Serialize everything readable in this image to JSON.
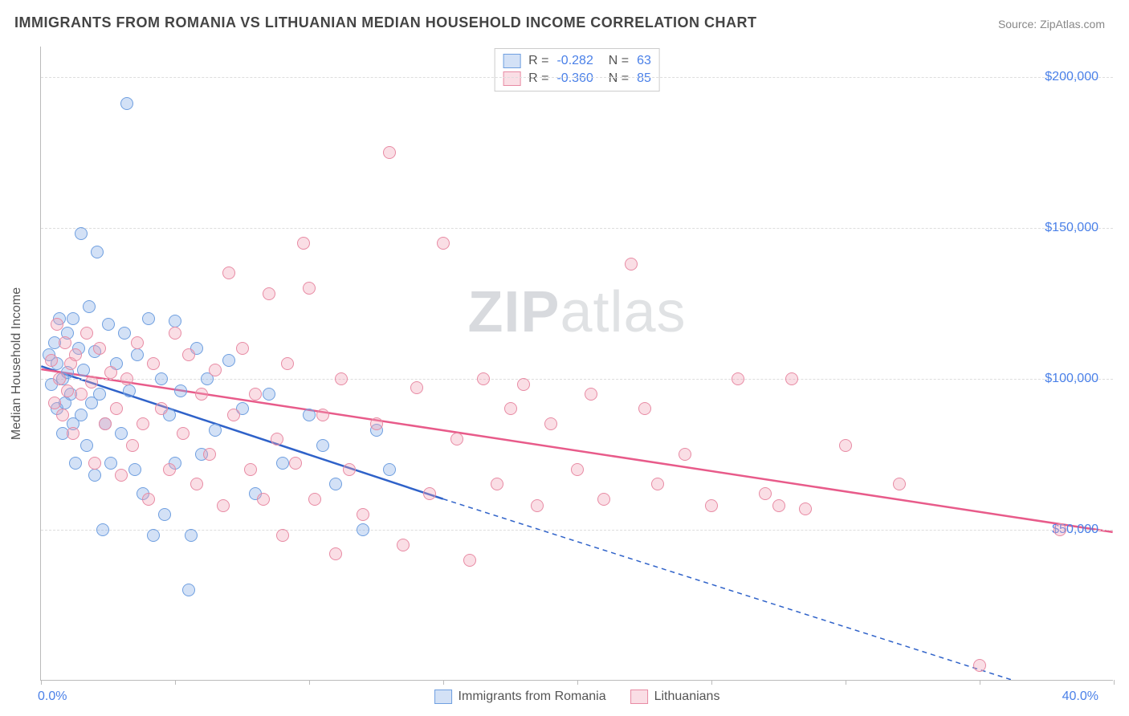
{
  "title": "IMMIGRANTS FROM ROMANIA VS LITHUANIAN MEDIAN HOUSEHOLD INCOME CORRELATION CHART",
  "source_prefix": "Source: ",
  "source_name": "ZipAtlas.com",
  "watermark_bold": "ZIP",
  "watermark_rest": "atlas",
  "chart": {
    "type": "scatter",
    "xlim": [
      0,
      40
    ],
    "ylim": [
      0,
      210000
    ],
    "xtick_positions": [
      0,
      5,
      10,
      15,
      20,
      25,
      30,
      35,
      40
    ],
    "xtick_labels_shown": {
      "0": "0.0%",
      "40": "40.0%"
    },
    "yticks": [
      {
        "v": 50000,
        "label": "$50,000"
      },
      {
        "v": 100000,
        "label": "$100,000"
      },
      {
        "v": 150000,
        "label": "$150,000"
      },
      {
        "v": 200000,
        "label": "$200,000"
      }
    ],
    "y_axis_title": "Median Household Income",
    "grid_color": "#dddddd",
    "axis_color": "#bbbbbb",
    "background_color": "#ffffff",
    "label_color": "#4a80e8",
    "text_color": "#555555",
    "title_fontsize": 18,
    "label_fontsize": 16,
    "dot_radius": 8,
    "series": [
      {
        "name": "Immigrants from Romania",
        "key": "romania",
        "R": "-0.282",
        "N": "63",
        "fill": "rgba(130,170,230,0.35)",
        "stroke": "#6f9fe0",
        "line_color": "#2f62c9",
        "trend": {
          "x1": 0,
          "y1": 104000,
          "x2_solid": 15,
          "y2_solid": 60000,
          "x2_dash": 38,
          "y2_dash": -5000
        },
        "points": [
          [
            0.3,
            108000
          ],
          [
            0.4,
            98000
          ],
          [
            0.5,
            112000
          ],
          [
            0.6,
            105000
          ],
          [
            0.6,
            90000
          ],
          [
            0.7,
            120000
          ],
          [
            0.8,
            100000
          ],
          [
            0.8,
            82000
          ],
          [
            0.9,
            92000
          ],
          [
            1.0,
            115000
          ],
          [
            1.0,
            102000
          ],
          [
            1.1,
            95000
          ],
          [
            1.2,
            85000
          ],
          [
            1.2,
            120000
          ],
          [
            1.3,
            72000
          ],
          [
            1.4,
            110000
          ],
          [
            1.5,
            88000
          ],
          [
            1.5,
            148000
          ],
          [
            1.6,
            103000
          ],
          [
            1.7,
            78000
          ],
          [
            1.8,
            124000
          ],
          [
            1.9,
            92000
          ],
          [
            2.0,
            68000
          ],
          [
            2.0,
            109000
          ],
          [
            2.1,
            142000
          ],
          [
            2.2,
            95000
          ],
          [
            2.3,
            50000
          ],
          [
            2.4,
            85000
          ],
          [
            2.5,
            118000
          ],
          [
            2.6,
            72000
          ],
          [
            2.8,
            105000
          ],
          [
            3.0,
            82000
          ],
          [
            3.1,
            115000
          ],
          [
            3.2,
            191000
          ],
          [
            3.3,
            96000
          ],
          [
            3.5,
            70000
          ],
          [
            3.6,
            108000
          ],
          [
            3.8,
            62000
          ],
          [
            4.0,
            120000
          ],
          [
            4.2,
            48000
          ],
          [
            4.5,
            100000
          ],
          [
            4.6,
            55000
          ],
          [
            4.8,
            88000
          ],
          [
            5.0,
            119000
          ],
          [
            5.0,
            72000
          ],
          [
            5.2,
            96000
          ],
          [
            5.5,
            30000
          ],
          [
            5.6,
            48000
          ],
          [
            5.8,
            110000
          ],
          [
            6.0,
            75000
          ],
          [
            6.2,
            100000
          ],
          [
            6.5,
            83000
          ],
          [
            7.0,
            106000
          ],
          [
            7.5,
            90000
          ],
          [
            8.0,
            62000
          ],
          [
            8.5,
            95000
          ],
          [
            9.0,
            72000
          ],
          [
            10.0,
            88000
          ],
          [
            10.5,
            78000
          ],
          [
            11.0,
            65000
          ],
          [
            12.0,
            50000
          ],
          [
            12.5,
            83000
          ],
          [
            13.0,
            70000
          ]
        ]
      },
      {
        "name": "Lithuanians",
        "key": "lithuanians",
        "R": "-0.360",
        "N": "85",
        "fill": "rgba(240,160,180,0.35)",
        "stroke": "#e88ba4",
        "line_color": "#e85b8a",
        "trend": {
          "x1": 0,
          "y1": 103000,
          "x2_solid": 40,
          "y2_solid": 49000,
          "x2_dash": 40,
          "y2_dash": 49000
        },
        "points": [
          [
            0.4,
            106000
          ],
          [
            0.5,
            92000
          ],
          [
            0.6,
            118000
          ],
          [
            0.7,
            100000
          ],
          [
            0.8,
            88000
          ],
          [
            0.9,
            112000
          ],
          [
            1.0,
            96000
          ],
          [
            1.1,
            105000
          ],
          [
            1.2,
            82000
          ],
          [
            1.3,
            108000
          ],
          [
            1.5,
            95000
          ],
          [
            1.7,
            115000
          ],
          [
            1.9,
            99000
          ],
          [
            2.0,
            72000
          ],
          [
            2.2,
            110000
          ],
          [
            2.4,
            85000
          ],
          [
            2.6,
            102000
          ],
          [
            2.8,
            90000
          ],
          [
            3.0,
            68000
          ],
          [
            3.2,
            100000
          ],
          [
            3.4,
            78000
          ],
          [
            3.6,
            112000
          ],
          [
            3.8,
            85000
          ],
          [
            4.0,
            60000
          ],
          [
            4.2,
            105000
          ],
          [
            4.5,
            90000
          ],
          [
            4.8,
            70000
          ],
          [
            5.0,
            115000
          ],
          [
            5.3,
            82000
          ],
          [
            5.5,
            108000
          ],
          [
            5.8,
            65000
          ],
          [
            6.0,
            95000
          ],
          [
            6.3,
            75000
          ],
          [
            6.5,
            103000
          ],
          [
            6.8,
            58000
          ],
          [
            7.0,
            135000
          ],
          [
            7.2,
            88000
          ],
          [
            7.5,
            110000
          ],
          [
            7.8,
            70000
          ],
          [
            8.0,
            95000
          ],
          [
            8.3,
            60000
          ],
          [
            8.5,
            128000
          ],
          [
            8.8,
            80000
          ],
          [
            9.0,
            48000
          ],
          [
            9.2,
            105000
          ],
          [
            9.5,
            72000
          ],
          [
            9.8,
            145000
          ],
          [
            10.0,
            130000
          ],
          [
            10.2,
            60000
          ],
          [
            10.5,
            88000
          ],
          [
            11.0,
            42000
          ],
          [
            11.2,
            100000
          ],
          [
            11.5,
            70000
          ],
          [
            12.0,
            55000
          ],
          [
            12.5,
            85000
          ],
          [
            13.0,
            175000
          ],
          [
            13.5,
            45000
          ],
          [
            14.0,
            97000
          ],
          [
            14.5,
            62000
          ],
          [
            15.0,
            145000
          ],
          [
            15.5,
            80000
          ],
          [
            16.0,
            40000
          ],
          [
            16.5,
            100000
          ],
          [
            17.0,
            65000
          ],
          [
            17.5,
            90000
          ],
          [
            18.0,
            98000
          ],
          [
            18.5,
            58000
          ],
          [
            19.0,
            85000
          ],
          [
            20.0,
            70000
          ],
          [
            20.5,
            95000
          ],
          [
            21.0,
            60000
          ],
          [
            22.0,
            138000
          ],
          [
            22.5,
            90000
          ],
          [
            23.0,
            65000
          ],
          [
            24.0,
            75000
          ],
          [
            25.0,
            58000
          ],
          [
            26.0,
            100000
          ],
          [
            27.0,
            62000
          ],
          [
            27.5,
            58000
          ],
          [
            28.0,
            100000
          ],
          [
            28.5,
            57000
          ],
          [
            30.0,
            78000
          ],
          [
            32.0,
            65000
          ],
          [
            35.0,
            5000
          ],
          [
            38.0,
            50000
          ]
        ]
      }
    ]
  }
}
